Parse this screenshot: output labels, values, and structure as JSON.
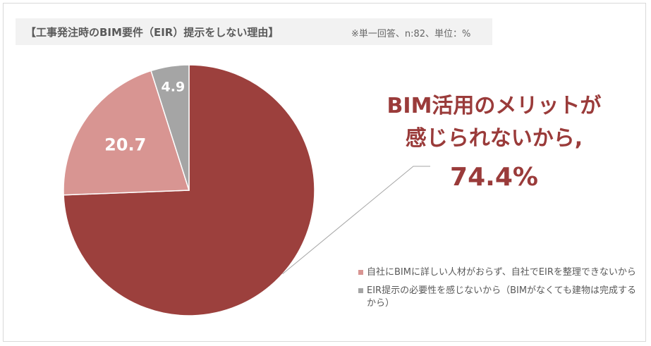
{
  "header": {
    "title": "【工事発注時のBIM要件（EIR）提示をしない理由】",
    "subtitle": "※単一回答、n:82、単位：%"
  },
  "callout": {
    "line1": "BIM活用のメリットが",
    "line2": "感じられないから,",
    "value": "74.4%"
  },
  "colors": {
    "main": "#9c403d",
    "secondary": "#d89592",
    "tertiary": "#a5a5a5"
  },
  "chart_data": {
    "type": "pie",
    "title": "【工事発注時のBIM要件（EIR）提示をしない理由】",
    "slices": [
      {
        "label": "BIM活用のメリットが感じられないから",
        "value": 74.4,
        "data_label": "",
        "color": "#9c403d"
      },
      {
        "label": "自社にBIMに詳しい人材がおらず、自社でEIRを整理できないから",
        "value": 20.7,
        "data_label": "20.7",
        "color": "#d89592"
      },
      {
        "label": "EIR提示の必要性を感じないから（BIMがなくても建物は完成するから）",
        "value": 4.9,
        "data_label": "4.9",
        "color": "#a5a5a5"
      }
    ],
    "legend": {
      "placement": "bottom-right",
      "items": [
        {
          "label": "自社にBIMに詳しい人材がおらず、自社でEIRを整理できないから",
          "color": "#d89592"
        },
        {
          "label": "EIR提示の必要性を感じないから（BIMがなくても建物は完成するから）",
          "color": "#a5a5a5"
        }
      ]
    }
  }
}
